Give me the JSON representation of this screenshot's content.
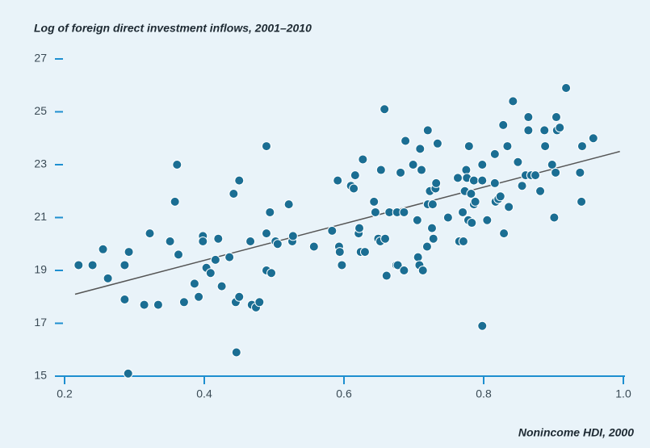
{
  "chart_data": {
    "type": "scatter",
    "title": "Log of foreign direct investment inflows, 2001–2010",
    "x_label": "Nonincome HDI, 2000",
    "color": "#1b6e93",
    "axis_color": "#1e8fd0",
    "line_color": "#555555",
    "xlim": [
      0.2,
      1.0
    ],
    "xticks": [
      0.2,
      0.4,
      0.6,
      0.8,
      {
        "value": 1.0,
        "label": "1.0"
      }
    ],
    "ylim": [
      15,
      27
    ],
    "yticks": [
      15,
      17,
      19,
      21,
      23,
      25,
      27
    ],
    "x": [
      0.22,
      0.24,
      0.255,
      0.262,
      0.286,
      0.286,
      0.292,
      0.291,
      0.314,
      0.322,
      0.334,
      0.351,
      0.358,
      0.361,
      0.363,
      0.371,
      0.386,
      0.392,
      0.398,
      0.398,
      0.403,
      0.409,
      0.416,
      0.42,
      0.425,
      0.436,
      0.442,
      0.445,
      0.446,
      0.45,
      0.45,
      0.466,
      0.468,
      0.474,
      0.479,
      0.489,
      0.489,
      0.489,
      0.494,
      0.496,
      0.502,
      0.505,
      0.521,
      0.526,
      0.527,
      0.557,
      0.583,
      0.591,
      0.593,
      0.594,
      0.597,
      0.61,
      0.614,
      0.616,
      0.621,
      0.622,
      0.624,
      0.627,
      0.63,
      0.643,
      0.645,
      0.649,
      0.652,
      0.653,
      0.658,
      0.659,
      0.661,
      0.665,
      0.675,
      0.676,
      0.677,
      0.681,
      0.686,
      0.686,
      0.688,
      0.699,
      0.705,
      0.706,
      0.708,
      0.709,
      0.711,
      0.713,
      0.719,
      0.72,
      0.72,
      0.723,
      0.726,
      0.727,
      0.728,
      0.731,
      0.732,
      0.734,
      0.749,
      0.763,
      0.765,
      0.77,
      0.771,
      0.773,
      0.775,
      0.776,
      0.778,
      0.779,
      0.782,
      0.783,
      0.786,
      0.786,
      0.788,
      0.798,
      0.798,
      0.798,
      0.805,
      0.816,
      0.816,
      0.817,
      0.821,
      0.824,
      0.828,
      0.829,
      0.834,
      0.836,
      0.842,
      0.849,
      0.855,
      0.86,
      0.864,
      0.864,
      0.868,
      0.874,
      0.881,
      0.887,
      0.888,
      0.898,
      0.901,
      0.903,
      0.904,
      0.905,
      0.909,
      0.918,
      0.938,
      0.94,
      0.941,
      0.957
    ],
    "values": [
      19.2,
      19.2,
      19.8,
      18.7,
      17.9,
      19.2,
      19.7,
      15.1,
      17.7,
      20.4,
      17.7,
      20.1,
      21.6,
      23.0,
      19.6,
      17.8,
      18.5,
      18.0,
      20.3,
      20.1,
      19.1,
      18.9,
      19.4,
      20.2,
      18.4,
      19.5,
      21.9,
      17.8,
      15.9,
      18.0,
      22.4,
      20.1,
      17.7,
      17.6,
      17.8,
      20.4,
      19.0,
      23.7,
      21.2,
      18.9,
      20.1,
      20.0,
      21.5,
      20.1,
      20.3,
      19.9,
      20.5,
      22.4,
      19.9,
      19.7,
      19.2,
      22.2,
      22.1,
      22.6,
      20.4,
      20.6,
      19.7,
      23.2,
      19.7,
      21.6,
      21.2,
      20.2,
      20.1,
      22.8,
      25.1,
      20.2,
      18.8,
      21.2,
      19.2,
      21.2,
      19.2,
      22.7,
      21.2,
      19.0,
      23.9,
      23.0,
      20.9,
      19.5,
      19.2,
      23.6,
      22.8,
      19.0,
      19.9,
      21.5,
      24.3,
      22.0,
      20.6,
      21.5,
      20.2,
      22.1,
      22.3,
      23.8,
      21.0,
      22.5,
      20.1,
      21.2,
      20.1,
      22.0,
      22.8,
      22.5,
      20.9,
      23.7,
      21.9,
      20.8,
      22.4,
      21.5,
      21.6,
      16.9,
      22.4,
      23.0,
      20.9,
      23.4,
      22.3,
      21.6,
      21.7,
      21.8,
      24.5,
      20.4,
      23.7,
      21.4,
      25.4,
      23.1,
      22.2,
      22.6,
      24.8,
      24.3,
      22.6,
      22.6,
      22.0,
      24.3,
      23.7,
      23.0,
      21.0,
      22.7,
      24.8,
      24.3,
      24.4,
      25.9,
      22.7,
      21.6,
      23.7,
      24.0
    ],
    "trend_line": {
      "x": [
        0.215,
        0.995
      ],
      "y": [
        18.1,
        23.5
      ]
    }
  }
}
